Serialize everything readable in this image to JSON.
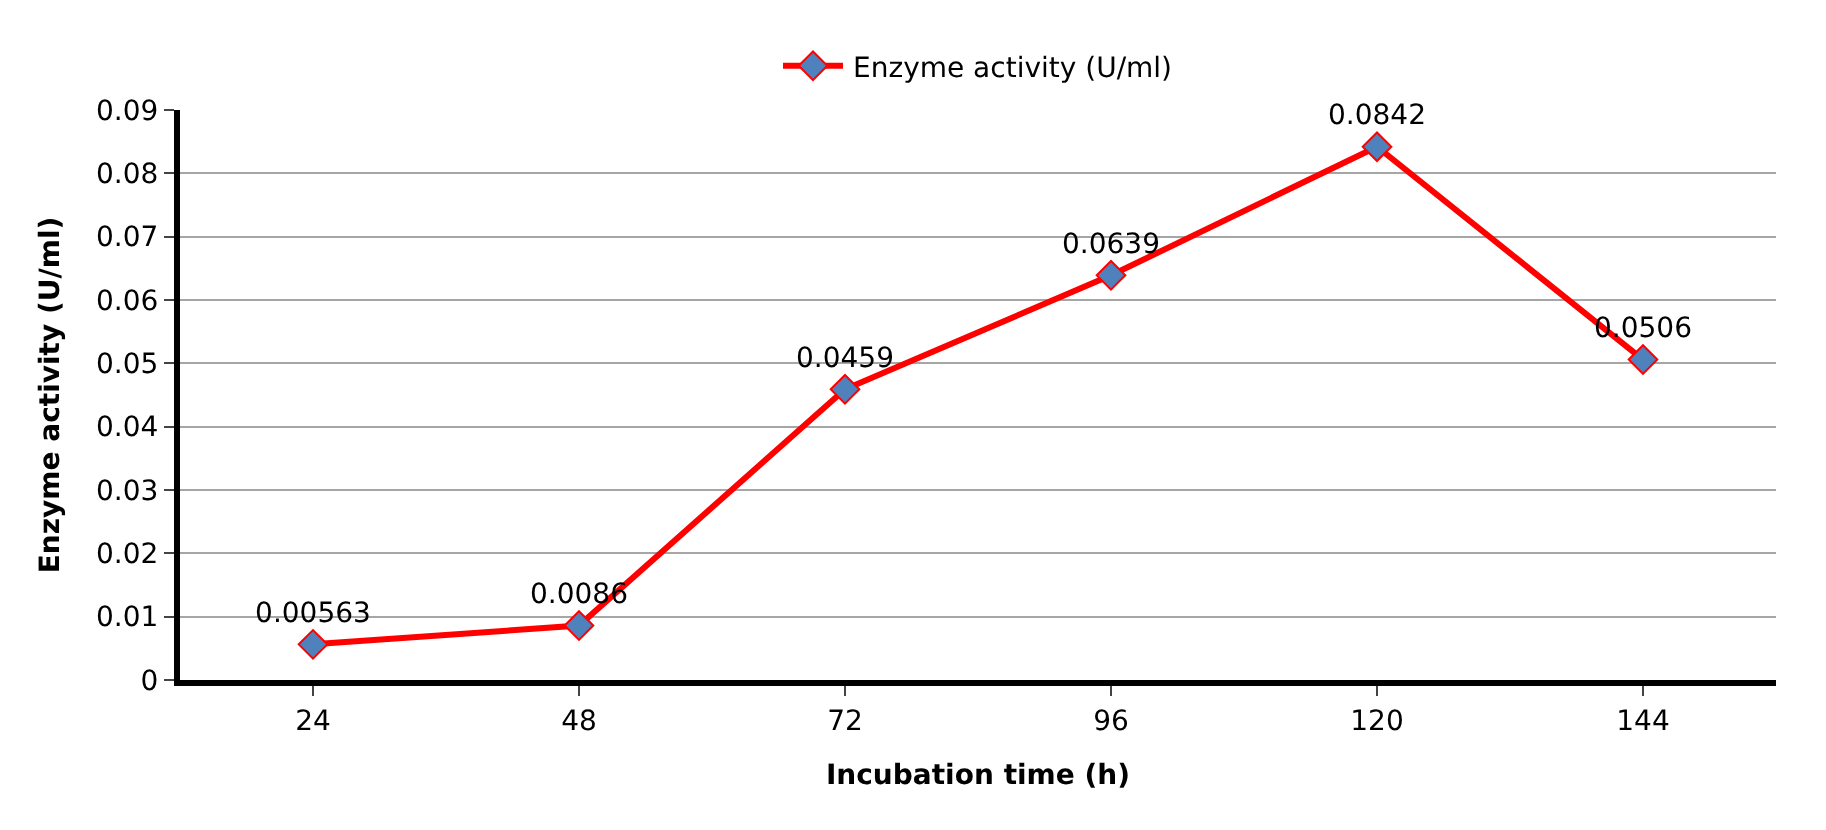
{
  "chart_data": {
    "type": "line",
    "xlabel": "Incubation time (h)",
    "ylabel": "Enzyme activity (U/ml)",
    "categories": [
      "24",
      "48",
      "72",
      "96",
      "120",
      "144"
    ],
    "series": [
      {
        "name": "Enzyme activity (U/ml)",
        "color": "#ff0000",
        "values": [
          0.00563,
          0.0086,
          0.0459,
          0.0639,
          0.0842,
          0.0506
        ]
      }
    ],
    "ylim": [
      0,
      0.09
    ],
    "yticks": [
      0,
      0.01,
      0.02,
      0.03,
      0.04,
      0.05,
      0.06,
      0.07,
      0.08,
      0.09
    ],
    "grid": "y",
    "legend": "top",
    "marker": "diamond",
    "line_style": "solid",
    "data_labels": true
  }
}
